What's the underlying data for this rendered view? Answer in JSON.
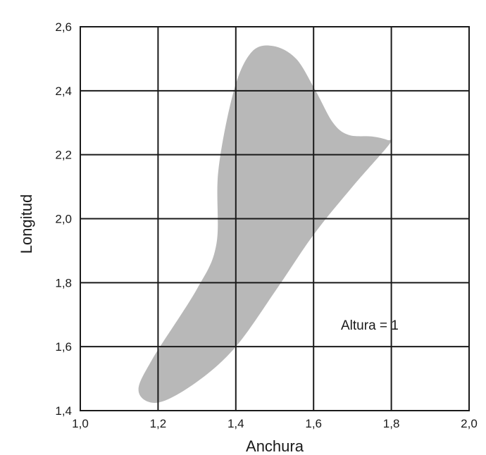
{
  "chart_data": {
    "type": "area",
    "title": "",
    "xlabel": "Anchura",
    "ylabel": "Longitud",
    "xlim": [
      1.0,
      2.0
    ],
    "ylim": [
      1.4,
      2.6
    ],
    "grid": true,
    "x_ticks": [
      1.0,
      1.2,
      1.4,
      1.6,
      1.8,
      2.0
    ],
    "y_ticks": [
      1.4,
      1.6,
      1.8,
      2.0,
      2.2,
      2.4,
      2.6
    ],
    "x_tick_labels": [
      "1,0",
      "1,2",
      "1,4",
      "1,6",
      "1,8",
      "2,0"
    ],
    "y_tick_labels": [
      "1,4",
      "1,6",
      "1,8",
      "2,0",
      "2,2",
      "2,4",
      "2,6"
    ],
    "annotation": "Altura = 1",
    "region_color": "#b8b8b8",
    "region_outline": [
      [
        1.495,
        2.54
      ],
      [
        1.555,
        2.5
      ],
      [
        1.605,
        2.4
      ],
      [
        1.65,
        2.3
      ],
      [
        1.69,
        2.262
      ],
      [
        1.75,
        2.257
      ],
      [
        1.79,
        2.246
      ],
      [
        1.795,
        2.233
      ],
      [
        1.7,
        2.1
      ],
      [
        1.6,
        1.95
      ],
      [
        1.505,
        1.78
      ],
      [
        1.4,
        1.6
      ],
      [
        1.3,
        1.49
      ],
      [
        1.2,
        1.425
      ],
      [
        1.15,
        1.46
      ],
      [
        1.185,
        1.56
      ],
      [
        1.3,
        1.78
      ],
      [
        1.35,
        1.92
      ],
      [
        1.355,
        2.15
      ],
      [
        1.395,
        2.4
      ],
      [
        1.44,
        2.52
      ]
    ]
  }
}
